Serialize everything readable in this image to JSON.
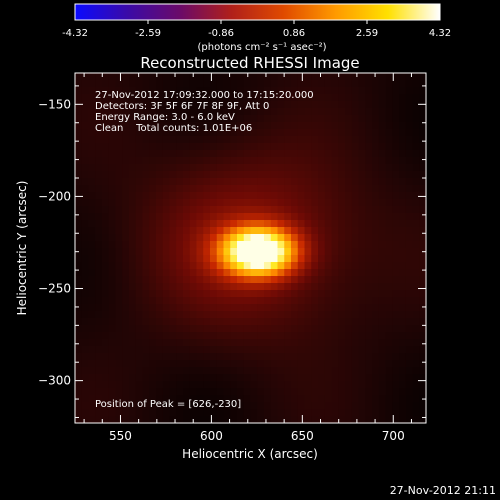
{
  "colorbar": {
    "min_label": "-4.32",
    "max_label": "4.32",
    "tick_labels": [
      "-4.32",
      "-2.59",
      "-0.86",
      "0.86",
      "2.59",
      "4.32"
    ],
    "units_label": "(photons cm⁻² s⁻¹ asec⁻²)",
    "colormap": [
      "#0a0aff",
      "#3a0aa8",
      "#6a0a6a",
      "#b0201a",
      "#e04a00",
      "#ff9a00",
      "#ffe000",
      "#ffffff"
    ]
  },
  "title": "Reconstructed RHESSI Image",
  "info": {
    "time": "27-Nov-2012 17:09:32.000 to 17:15:20.000",
    "detectors": "Detectors: 3F 5F 6F 7F 8F 9F, Att 0",
    "energy": "Energy Range: 3.0 - 6.0 keV",
    "clean": "Clean    Total counts: 1.01E+06",
    "peak": "Position of Peak = [626,-230]"
  },
  "timestamp": "27-Nov-2012 21:11",
  "chart_data": {
    "type": "heatmap",
    "title": "Reconstructed RHESSI Image",
    "xlabel": "Heliocentric X (arcsec)",
    "ylabel": "Heliocentric Y (arcsec)",
    "xlim": [
      525,
      718
    ],
    "ylim": [
      -323,
      -133
    ],
    "xticks": [
      550,
      600,
      650,
      700
    ],
    "yticks": [
      -150,
      -200,
      -250,
      -300
    ],
    "value_range": [
      -4.32,
      4.32
    ],
    "peak": [
      626,
      -230
    ],
    "sources": [
      {
        "x": 626,
        "y": -230,
        "sx": 14,
        "sy": 9,
        "amp": 4.32
      },
      {
        "x": 622,
        "y": -225,
        "sx": 40,
        "sy": 34,
        "amp": 1.1
      }
    ]
  }
}
